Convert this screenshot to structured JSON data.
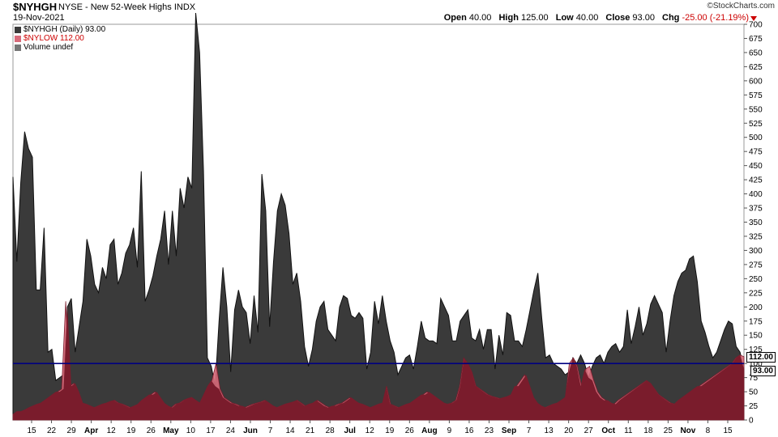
{
  "header": {
    "symbol": "$NYHGH",
    "description": "NYSE - New 52-Week Highs  INDX",
    "date": "19-Nov-2021",
    "brand": "©StockCharts.com",
    "open_label": "Open",
    "open_value": "40.00",
    "high_label": "High",
    "high_value": "125.00",
    "low_label": "Low",
    "low_value": "40.00",
    "close_label": "Close",
    "close_value": "93.00",
    "chg_label": "Chg",
    "chg_value": "-25.00 (-21.19%)"
  },
  "legend": {
    "nyhgh": "$NYHGH (Daily) 93.00",
    "nylow": "$NYLOW 112.00",
    "volume": "Volume undef"
  },
  "tags": {
    "nylow_last": "112.00",
    "nyhgh_last": "93.00"
  },
  "colors": {
    "highs_fill": "#3a3a3a",
    "lows_fill": "#d86a7a",
    "lows_dark": "#7a1c2c",
    "ref_line": "#000080"
  },
  "chart_data": {
    "type": "area",
    "ylim": [
      0,
      700
    ],
    "yticks": [
      0,
      25,
      50,
      75,
      100,
      125,
      150,
      175,
      200,
      225,
      250,
      275,
      300,
      325,
      350,
      375,
      400,
      425,
      450,
      475,
      500,
      525,
      550,
      575,
      600,
      625,
      650,
      675,
      700
    ],
    "xtick_labels": [
      "15",
      "22",
      "29",
      "Apr",
      "12",
      "19",
      "26",
      "May",
      "10",
      "17",
      "24",
      "Jun",
      "7",
      "14",
      "21",
      "28",
      "Jul",
      "12",
      "19",
      "26",
      "Aug",
      "9",
      "16",
      "23",
      "Sep",
      "7",
      "13",
      "20",
      "27",
      "Oct",
      "11",
      "18",
      "25",
      "Nov",
      "8",
      "15"
    ],
    "reference_line": 100,
    "series": [
      {
        "name": "$NYHGH",
        "values": [
          430,
          280,
          420,
          510,
          480,
          465,
          230,
          230,
          340,
          120,
          125,
          70,
          75,
          80,
          200,
          215,
          120,
          165,
          210,
          320,
          290,
          240,
          225,
          270,
          250,
          310,
          320,
          240,
          260,
          295,
          310,
          340,
          270,
          440,
          210,
          230,
          255,
          290,
          320,
          370,
          275,
          370,
          290,
          410,
          375,
          430,
          410,
          720,
          650,
          440,
          110,
          95,
          60,
          175,
          270,
          200,
          85,
          195,
          230,
          200,
          190,
          135,
          220,
          155,
          435,
          370,
          165,
          280,
          370,
          400,
          380,
          330,
          240,
          260,
          210,
          130,
          95,
          125,
          175,
          200,
          210,
          160,
          150,
          140,
          200,
          220,
          215,
          185,
          180,
          190,
          180,
          90,
          120,
          210,
          170,
          220,
          175,
          140,
          120,
          80,
          95,
          110,
          115,
          90,
          130,
          175,
          145,
          140,
          140,
          135,
          215,
          200,
          185,
          140,
          140,
          175,
          185,
          195,
          145,
          140,
          160,
          125,
          160,
          160,
          90,
          150,
          115,
          190,
          185,
          140,
          140,
          130,
          160,
          195,
          230,
          260,
          180,
          110,
          115,
          100,
          95,
          90,
          80,
          85,
          110,
          100,
          115,
          100,
          75,
          95,
          110,
          115,
          100,
          120,
          130,
          135,
          120,
          130,
          195,
          135,
          165,
          200,
          150,
          170,
          205,
          220,
          205,
          190,
          120,
          175,
          220,
          245,
          260,
          265,
          285,
          290,
          245,
          175,
          155,
          130,
          110,
          120,
          140,
          160,
          175,
          170,
          130,
          120,
          90
        ],
        "sampled_points": 190
      },
      {
        "name": "$NYLOW",
        "values": [
          10,
          15,
          15,
          18,
          22,
          25,
          28,
          30,
          35,
          40,
          45,
          50,
          55,
          210,
          60,
          65,
          50,
          30,
          28,
          25,
          22,
          25,
          28,
          30,
          33,
          35,
          30,
          28,
          25,
          22,
          25,
          28,
          35,
          40,
          45,
          50,
          40,
          30,
          25,
          22,
          28,
          30,
          35,
          38,
          40,
          35,
          30,
          45,
          60,
          70,
          100,
          55,
          40,
          35,
          30,
          28,
          25,
          22,
          25,
          28,
          30,
          32,
          35,
          30,
          25,
          22,
          25,
          28,
          30,
          32,
          35,
          30,
          25,
          28,
          30,
          35,
          30,
          25,
          22,
          25,
          28,
          30,
          35,
          40,
          35,
          30,
          28,
          25,
          22,
          25,
          28,
          30,
          60,
          28,
          25,
          22,
          25,
          28,
          30,
          35,
          40,
          45,
          50,
          45,
          40,
          35,
          30,
          28,
          30,
          35,
          60,
          110,
          100,
          85,
          60,
          55,
          50,
          45,
          42,
          40,
          38,
          40,
          42,
          45,
          60,
          70,
          80,
          60,
          40,
          30,
          25,
          22,
          25,
          28,
          30,
          35,
          40,
          100,
          110,
          95,
          60,
          90,
          95,
          70,
          50,
          40,
          35,
          30,
          28,
          35,
          40,
          45,
          50,
          55,
          60,
          65,
          70,
          65,
          55,
          45,
          40,
          35,
          30,
          28,
          35,
          40,
          45,
          50,
          55,
          60,
          65,
          70,
          75,
          80,
          85,
          90,
          95,
          100,
          110,
          115,
          112
        ],
        "sampled_points": 180
      }
    ]
  }
}
